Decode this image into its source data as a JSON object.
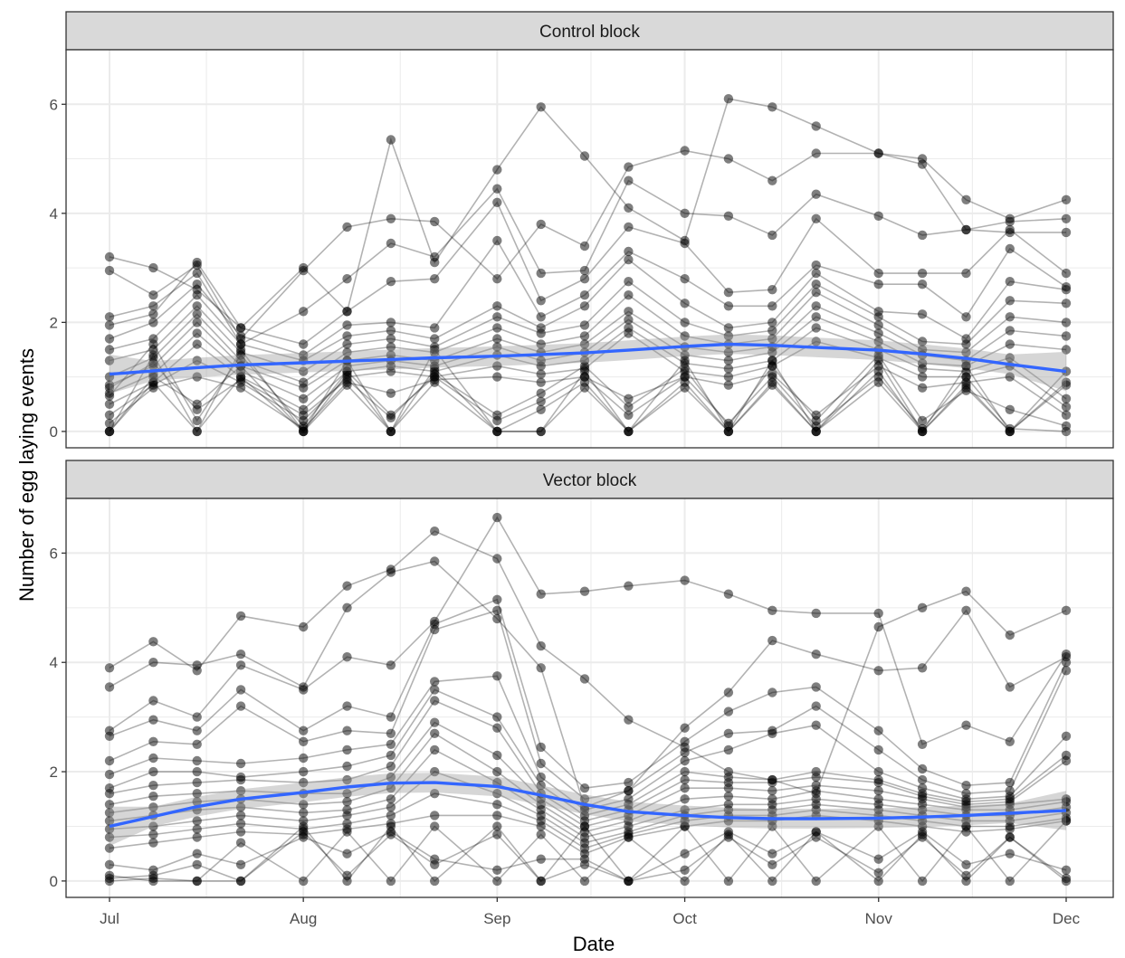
{
  "chart_data": {
    "type": "line",
    "xlabel": "Date",
    "ylabel": "Number of egg laying events",
    "x_ticks": [
      "Jul",
      "Aug",
      "Sep",
      "Oct",
      "Nov",
      "Dec"
    ],
    "x_tick_dates": [
      "2019-07-01",
      "2019-08-01",
      "2019-09-01",
      "2019-10-01",
      "2019-11-01",
      "2019-12-01"
    ],
    "x_sample_dates": [
      "2019-07-01",
      "2019-07-08",
      "2019-07-15",
      "2019-07-22",
      "2019-08-01",
      "2019-08-08",
      "2019-08-15",
      "2019-08-22",
      "2019-09-01",
      "2019-09-08",
      "2019-09-15",
      "2019-09-22",
      "2019-10-01",
      "2019-10-08",
      "2019-10-15",
      "2019-10-22",
      "2019-11-01",
      "2019-11-08",
      "2019-11-15",
      "2019-11-22",
      "2019-12-01"
    ],
    "y_ticks": [
      0,
      2,
      4,
      6
    ],
    "ylim": [
      -0.3,
      7.0
    ],
    "grid": true,
    "colors": {
      "trend": "#3366ff",
      "points": "#000000",
      "ribbon": "#999999",
      "strip": "#d9d9d9",
      "grid": "#ebebeb"
    },
    "panels": [
      {
        "title": "Control block",
        "trend": [
          1.05,
          1.11,
          1.17,
          1.22,
          1.26,
          1.29,
          1.32,
          1.35,
          1.38,
          1.41,
          1.44,
          1.49,
          1.56,
          1.6,
          1.58,
          1.54,
          1.49,
          1.42,
          1.34,
          1.23,
          1.1
        ],
        "series": [
          {
            "values": [
              3.2,
              3.0,
              2.6,
              1.9,
              3.0,
              2.2,
              5.35,
              3.1,
              4.8,
              5.95,
              5.05,
              4.1,
              3.5,
              6.1,
              5.95,
              5.6,
              5.1,
              5.0,
              4.25,
              3.9,
              4.25
            ]
          },
          {
            "values": [
              2.95,
              2.5,
              3.05,
              1.7,
              2.95,
              3.75,
              3.9,
              3.85,
              2.8,
              3.8,
              3.4,
              4.85,
              5.15,
              5.0,
              4.6,
              5.1,
              5.1,
              4.9,
              3.7,
              3.85,
              3.9
            ]
          },
          {
            "values": [
              2.1,
              2.3,
              2.9,
              1.6,
              2.2,
              2.8,
              3.45,
              3.2,
              4.45,
              2.9,
              2.95,
              4.6,
              4.0,
              3.95,
              3.6,
              4.35,
              3.95,
              3.6,
              3.7,
              3.65,
              3.65
            ]
          },
          {
            "values": [
              1.95,
              2.15,
              3.1,
              1.9,
              1.6,
              2.2,
              2.75,
              2.8,
              4.2,
              2.4,
              2.8,
              3.75,
              3.45,
              2.55,
              2.6,
              3.9,
              2.9,
              2.9,
              2.9,
              3.7,
              2.9
            ]
          },
          {
            "values": [
              1.7,
              2.0,
              2.7,
              1.75,
              1.4,
              1.95,
              2.0,
              1.9,
              3.5,
              2.1,
              2.5,
              3.3,
              2.8,
              2.3,
              2.3,
              3.05,
              2.7,
              2.7,
              2.1,
              3.35,
              2.65
            ]
          },
          {
            "values": [
              1.5,
              1.7,
              2.5,
              1.6,
              1.3,
              1.75,
              1.85,
              1.7,
              2.3,
              1.9,
              2.3,
              3.15,
              2.35,
              1.9,
              2.0,
              2.9,
              2.2,
              2.15,
              1.7,
              2.75,
              2.6
            ]
          },
          {
            "values": [
              1.3,
              1.5,
              2.3,
              1.45,
              1.1,
              1.6,
              1.7,
              1.55,
              2.1,
              1.8,
              1.95,
              2.75,
              2.0,
              1.75,
              1.85,
              2.7,
              2.1,
              1.65,
              1.6,
              2.4,
              2.35
            ]
          },
          {
            "values": [
              1.0,
              1.35,
              2.15,
              1.3,
              0.9,
              1.45,
              1.55,
              1.45,
              1.9,
              1.6,
              1.75,
              2.5,
              1.75,
              1.6,
              1.7,
              2.55,
              1.95,
              1.5,
              1.45,
              2.1,
              2.0
            ]
          },
          {
            "values": [
              0.85,
              1.2,
              2.0,
              1.2,
              0.8,
              1.3,
              1.4,
              1.3,
              1.7,
              1.45,
              1.6,
              2.2,
              1.55,
              1.45,
              1.55,
              2.3,
              1.8,
              1.4,
              1.3,
              1.85,
              1.75
            ]
          },
          {
            "values": [
              0.7,
              1.05,
              1.8,
              1.1,
              0.6,
              1.2,
              1.3,
              1.2,
              1.55,
              1.3,
              1.45,
              2.05,
              1.4,
              1.3,
              1.45,
              2.1,
              1.65,
              1.25,
              1.2,
              1.6,
              1.5
            ]
          },
          {
            "values": [
              0.5,
              0.9,
              1.6,
              1.0,
              0.4,
              1.1,
              1.2,
              1.1,
              1.4,
              1.2,
              1.3,
              1.9,
              1.25,
              1.15,
              1.3,
              1.9,
              1.5,
              1.15,
              1.1,
              1.35,
              0.6
            ]
          },
          {
            "values": [
              0.3,
              0.85,
              1.3,
              0.9,
              0.2,
              1.0,
              1.1,
              1.0,
              1.2,
              1.05,
              1.15,
              1.8,
              1.1,
              1.0,
              1.2,
              1.65,
              1.35,
              1.0,
              1.0,
              1.2,
              0.45
            ]
          },
          {
            "values": [
              0.15,
              0.8,
              1.0,
              0.8,
              0.05,
              0.9,
              0.7,
              0.95,
              1.0,
              0.9,
              1.0,
              0.6,
              1.0,
              0.85,
              1.05,
              0.3,
              1.2,
              0.8,
              0.9,
              1.0,
              0.3
            ]
          },
          {
            "values": [
              0.0,
              1.0,
              0.5,
              1.2,
              0.0,
              1.05,
              0.0,
              1.15,
              0.0,
              0.4,
              0.9,
              0.0,
              0.9,
              0.0,
              0.9,
              0.0,
              1.1,
              0.0,
              0.8,
              0.0,
              0.9
            ]
          },
          {
            "values": [
              0.0,
              1.4,
              0.0,
              1.5,
              0.0,
              1.3,
              0.0,
              1.5,
              0.0,
              0.0,
              1.1,
              0.0,
              1.3,
              0.0,
              1.3,
              0.0,
              1.3,
              0.0,
              1.2,
              0.0,
              1.1
            ]
          },
          {
            "values": [
              0.0,
              0.9,
              0.0,
              1.0,
              0.0,
              0.85,
              0.0,
              0.9,
              0.0,
              0.0,
              0.8,
              0.0,
              0.8,
              0.0,
              0.85,
              0.0,
              0.9,
              0.0,
              0.85,
              0.0,
              0.85
            ]
          },
          {
            "values": [
              0.65,
              1.6,
              0.2,
              1.4,
              0.1,
              1.1,
              0.3,
              1.0,
              0.2,
              0.55,
              1.0,
              0.3,
              1.0,
              0.15,
              1.0,
              0.1,
              1.0,
              0.05,
              1.0,
              0.05,
              0.0
            ]
          },
          {
            "values": [
              0.8,
              1.25,
              0.4,
              0.95,
              0.3,
              0.95,
              0.25,
              1.05,
              0.3,
              0.7,
              1.2,
              0.45,
              1.15,
              0.1,
              1.2,
              0.2,
              1.4,
              0.2,
              0.75,
              0.4,
              0.1
            ]
          }
        ]
      },
      {
        "title": "Vector block",
        "trend": [
          1.0,
          1.18,
          1.36,
          1.5,
          1.62,
          1.72,
          1.79,
          1.8,
          1.73,
          1.57,
          1.4,
          1.27,
          1.2,
          1.16,
          1.14,
          1.14,
          1.15,
          1.17,
          1.2,
          1.24,
          1.29
        ],
        "series": [
          {
            "values": [
              3.9,
              4.38,
              3.85,
              4.85,
              4.65,
              5.4,
              5.7,
              6.4,
              5.9,
              4.3,
              3.7,
              2.95,
              2.45,
              2.0,
              1.85,
              1.6,
              4.65,
              5.0,
              5.3,
              4.5,
              4.95
            ]
          },
          {
            "values": [
              3.55,
              4.0,
              3.95,
              4.15,
              3.55,
              5.0,
              5.65,
              5.85,
              4.8,
              3.9,
              1.35,
              1.65,
              2.8,
              3.45,
              4.4,
              4.15,
              3.85,
              3.9,
              4.95,
              3.55,
              4.1
            ]
          },
          {
            "values": [
              2.75,
              3.3,
              3.0,
              3.95,
              3.5,
              4.1,
              3.95,
              4.75,
              6.65,
              5.25,
              5.3,
              5.4,
              5.5,
              5.25,
              4.95,
              4.9,
              4.9,
              2.5,
              2.85,
              2.55,
              4.15
            ]
          },
          {
            "values": [
              2.65,
              2.95,
              2.75,
              3.5,
              2.75,
              3.2,
              3.0,
              4.7,
              5.15,
              2.45,
              1.7,
              1.8,
              2.55,
              3.1,
              3.45,
              3.55,
              2.75,
              2.05,
              1.75,
              1.8,
              4.0
            ]
          },
          {
            "values": [
              2.2,
              2.55,
              2.5,
              3.2,
              2.55,
              2.75,
              2.7,
              4.6,
              4.95,
              2.15,
              1.5,
              1.65,
              2.35,
              2.7,
              2.75,
              3.2,
              2.4,
              1.85,
              1.6,
              1.65,
              3.85
            ]
          },
          {
            "values": [
              1.95,
              2.25,
              2.2,
              2.15,
              2.25,
              2.4,
              2.5,
              3.65,
              3.75,
              1.9,
              1.3,
              1.5,
              2.2,
              2.4,
              2.7,
              2.85,
              2.0,
              1.7,
              1.5,
              1.55,
              2.65
            ]
          },
          {
            "values": [
              1.7,
              2.0,
              2.0,
              1.9,
              2.0,
              2.1,
              2.3,
              3.5,
              3.0,
              1.75,
              1.2,
              1.4,
              2.0,
              1.9,
              1.85,
              2.0,
              1.85,
              1.6,
              1.45,
              1.5,
              2.3
            ]
          },
          {
            "values": [
              1.6,
              1.75,
              1.8,
              1.85,
              1.8,
              1.85,
              2.1,
              3.3,
              2.8,
              1.6,
              1.1,
              1.3,
              1.85,
              1.8,
              1.8,
              1.9,
              1.8,
              1.55,
              1.4,
              1.45,
              2.2
            ]
          },
          {
            "values": [
              1.4,
              1.55,
              1.6,
              1.65,
              1.6,
              1.6,
              1.9,
              2.9,
              2.3,
              1.5,
              1.0,
              1.2,
              1.7,
              1.7,
              1.65,
              1.75,
              1.65,
              1.5,
              1.35,
              1.4,
              1.5
            ]
          },
          {
            "values": [
              1.25,
              1.35,
              1.45,
              1.5,
              1.4,
              1.45,
              1.7,
              2.7,
              2.0,
              1.4,
              0.9,
              1.1,
              1.5,
              1.55,
              1.5,
              1.65,
              1.5,
              1.4,
              1.3,
              1.3,
              1.45
            ]
          },
          {
            "values": [
              1.1,
              1.2,
              1.3,
              1.35,
              1.25,
              1.3,
              1.5,
              2.4,
              1.8,
              1.3,
              0.8,
              1.0,
              1.3,
              1.4,
              1.4,
              1.5,
              1.4,
              1.3,
              1.2,
              1.2,
              1.35
            ]
          },
          {
            "values": [
              0.95,
              1.0,
              1.1,
              1.2,
              1.1,
              1.2,
              1.35,
              2.0,
              1.6,
              1.2,
              0.7,
              0.9,
              1.2,
              1.3,
              1.3,
              1.4,
              1.3,
              1.2,
              1.1,
              1.1,
              1.25
            ]
          },
          {
            "values": [
              0.8,
              0.85,
              0.95,
              1.05,
              0.95,
              1.05,
              1.2,
              1.6,
              1.4,
              1.1,
              0.6,
              0.85,
              1.1,
              1.2,
              1.2,
              1.3,
              1.2,
              1.1,
              1.0,
              1.0,
              1.15
            ]
          },
          {
            "values": [
              0.6,
              0.7,
              0.8,
              0.9,
              0.85,
              0.95,
              1.05,
              1.2,
              1.2,
              1.0,
              0.5,
              0.8,
              1.0,
              1.1,
              1.1,
              1.2,
              1.1,
              1.0,
              0.9,
              0.95,
              1.1
            ]
          },
          {
            "values": [
              0.1,
              0.0,
              0.0,
              0.0,
              1.0,
              0.0,
              1.0,
              0.0,
              1.0,
              0.0,
              1.0,
              0.0,
              1.0,
              0.0,
              1.0,
              0.0,
              1.0,
              0.0,
              1.0,
              0.0,
              1.1
            ]
          },
          {
            "values": [
              0.0,
              0.05,
              0.0,
              0.7,
              0.0,
              0.9,
              0.0,
              1.0,
              0.0,
              0.85,
              0.0,
              0.8,
              0.0,
              0.85,
              0.0,
              0.9,
              0.0,
              0.85,
              0.0,
              0.8,
              0.0
            ]
          },
          {
            "values": [
              0.05,
              0.1,
              0.3,
              0.0,
              0.9,
              0.1,
              0.85,
              0.3,
              0.85,
              0.0,
              0.3,
              0.0,
              0.2,
              0.8,
              0.3,
              0.8,
              0.15,
              0.8,
              0.1,
              0.8,
              0.05
            ]
          },
          {
            "values": [
              0.3,
              0.2,
              0.5,
              0.3,
              0.8,
              0.5,
              0.9,
              0.4,
              0.2,
              0.4,
              0.4,
              0.0,
              0.5,
              0.9,
              0.5,
              0.9,
              0.4,
              0.9,
              0.3,
              0.5,
              0.2
            ]
          }
        ]
      }
    ]
  }
}
